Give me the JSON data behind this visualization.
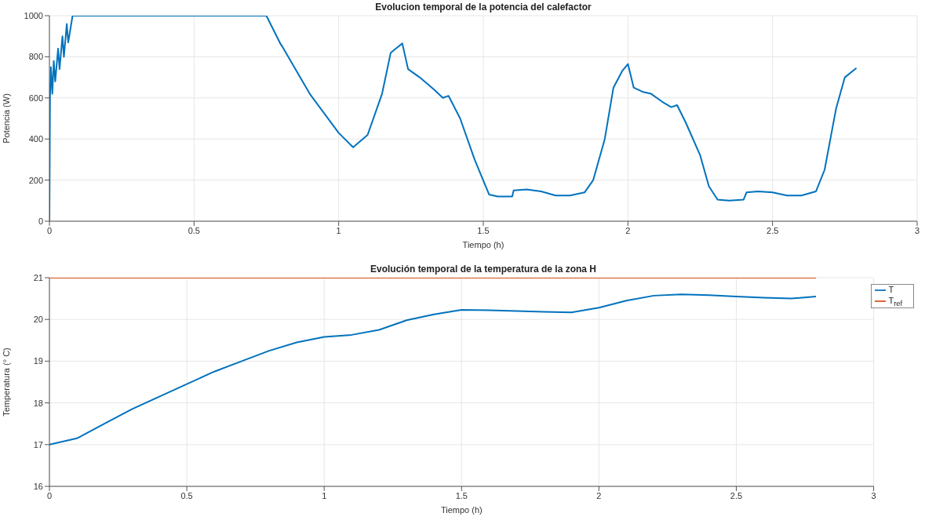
{
  "chart_data": [
    {
      "type": "line",
      "title": "Evolucion temporal de la potencia del calefactor",
      "xlabel": "Tiempo (h)",
      "ylabel": "Potencia (W)",
      "xlim": [
        0,
        3
      ],
      "xticks": [
        0,
        0.5,
        1,
        1.5,
        2,
        2.5,
        3
      ],
      "ylim": [
        0,
        1000
      ],
      "yticks": [
        0,
        200,
        400,
        600,
        800,
        1000
      ],
      "grid": true,
      "legend": false,
      "series": [
        {
          "color": "#0072bd",
          "x": [
            0,
            0.002,
            0.005,
            0.01,
            0.015,
            0.02,
            0.03,
            0.035,
            0.045,
            0.05,
            0.06,
            0.065,
            0.08,
            0.75,
            0.8,
            0.805,
            0.9,
            1.0,
            1.05,
            1.1,
            1.15,
            1.18,
            1.22,
            1.24,
            1.28,
            1.33,
            1.36,
            1.38,
            1.42,
            1.47,
            1.52,
            1.55,
            1.6,
            1.605,
            1.65,
            1.7,
            1.75,
            1.8,
            1.85,
            1.88,
            1.92,
            1.95,
            1.98,
            2.0,
            2.02,
            2.05,
            2.08,
            2.12,
            2.15,
            2.17,
            2.2,
            2.25,
            2.28,
            2.31,
            2.35,
            2.4,
            2.41,
            2.45,
            2.5,
            2.55,
            2.6,
            2.65,
            2.68,
            2.72,
            2.75,
            2.79
          ],
          "values": [
            0,
            600,
            750,
            620,
            780,
            680,
            840,
            740,
            900,
            800,
            960,
            870,
            1000,
            1000,
            860,
            850,
            620,
            430,
            360,
            420,
            620,
            820,
            865,
            740,
            700,
            640,
            600,
            610,
            500,
            300,
            130,
            120,
            120,
            150,
            155,
            145,
            125,
            125,
            140,
            200,
            400,
            650,
            730,
            765,
            650,
            630,
            620,
            580,
            555,
            565,
            480,
            320,
            170,
            105,
            100,
            105,
            140,
            145,
            140,
            125,
            125,
            145,
            250,
            550,
            700,
            745
          ]
        }
      ]
    },
    {
      "type": "line",
      "title": "Evolución temporal de la temperatura de la zona H",
      "xlabel": "Tiempo (h)",
      "ylabel": "Temperatura (° C)",
      "xlim": [
        0,
        3
      ],
      "xticks": [
        0,
        0.5,
        1,
        1.5,
        2,
        2.5,
        3
      ],
      "ylim": [
        16,
        21
      ],
      "yticks": [
        16,
        17,
        18,
        19,
        20,
        21
      ],
      "grid": true,
      "legend": "top right",
      "series": [
        {
          "name": "T",
          "color": "#0072bd",
          "x": [
            0,
            0.1,
            0.2,
            0.3,
            0.4,
            0.5,
            0.6,
            0.7,
            0.8,
            0.9,
            1.0,
            1.1,
            1.2,
            1.3,
            1.4,
            1.5,
            1.6,
            1.7,
            1.8,
            1.9,
            2.0,
            2.1,
            2.2,
            2.3,
            2.4,
            2.5,
            2.6,
            2.7,
            2.79
          ],
          "values": [
            17.0,
            17.15,
            17.5,
            17.85,
            18.15,
            18.45,
            18.75,
            19.0,
            19.25,
            19.45,
            19.58,
            19.63,
            19.75,
            19.98,
            20.12,
            20.23,
            20.22,
            20.2,
            20.18,
            20.17,
            20.28,
            20.45,
            20.57,
            20.6,
            20.58,
            20.55,
            20.52,
            20.5,
            20.55
          ]
        },
        {
          "name": "T$_{ref}$",
          "color": "#d95319",
          "x": [
            0,
            2.79
          ],
          "values": [
            21,
            21
          ]
        }
      ]
    }
  ]
}
